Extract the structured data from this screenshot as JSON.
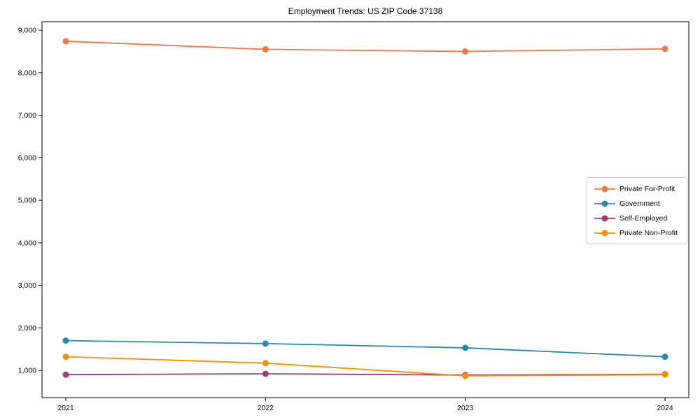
{
  "window": {
    "background": "#ffffff"
  },
  "chart": {
    "title": "Employment Trends: US ZIP Code 37138"
  },
  "chart_data": {
    "type": "line",
    "title": "Employment Trends: US ZIP Code 37138",
    "categories": [
      "2021",
      "2022",
      "2023",
      "2024"
    ],
    "series": [
      {
        "name": "Private For-Profit",
        "color": "#E8774A",
        "values": [
          8740,
          8550,
          8500,
          8560
        ]
      },
      {
        "name": "Government",
        "color": "#2E86AB",
        "values": [
          1700,
          1630,
          1530,
          1320
        ]
      },
      {
        "name": "Self-Employed",
        "color": "#A23B72",
        "values": [
          900,
          920,
          890,
          910
        ]
      },
      {
        "name": "Private Non-Profit",
        "color": "#F18F01",
        "values": [
          1320,
          1170,
          870,
          900
        ]
      }
    ],
    "xlabel": "",
    "ylabel": "",
    "ylim": [
      360,
      9200
    ],
    "y_ticks": [
      1000,
      2000,
      3000,
      4000,
      5000,
      6000,
      7000,
      8000,
      9000
    ],
    "y_tick_labels": [
      "1,000",
      "2,000",
      "3,000",
      "4,000",
      "5,000",
      "6,000",
      "7,000",
      "8,000",
      "9,000"
    ],
    "grid": false,
    "legend_position": "center-right",
    "marker": "circle",
    "axis_color": "#000000",
    "text_color": "#000000",
    "legend_border_color": "#cbcbcb"
  }
}
